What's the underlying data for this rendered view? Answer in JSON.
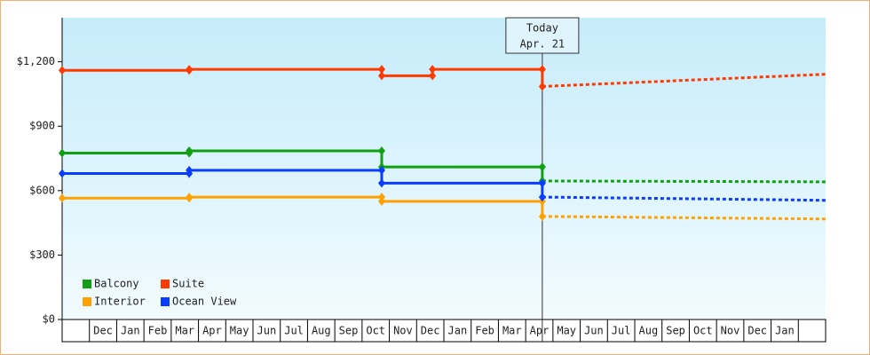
{
  "chart_data": {
    "type": "step",
    "categories": [
      null,
      "Dec",
      "Jan",
      "Feb",
      "Mar",
      "Apr",
      "May",
      "Jun",
      "Jul",
      "Aug",
      "Sep",
      "Oct",
      "Nov",
      "Dec",
      "Jan",
      "Feb",
      "Mar",
      "Apr",
      "May",
      "Jun",
      "Jul",
      "Aug",
      "Sep",
      "Oct",
      "Nov",
      "Dec",
      "Jan",
      null
    ],
    "xlim": [
      -0.5,
      27.5
    ],
    "ylim": [
      0,
      1405
    ],
    "yticks": [
      {
        "value": 0,
        "label": "$0"
      },
      {
        "value": 300,
        "label": "$300"
      },
      {
        "value": 600,
        "label": "$600"
      },
      {
        "value": 900,
        "label": "$900"
      },
      {
        "value": 1200,
        "label": "$1,200"
      }
    ],
    "today": {
      "x": 17.11,
      "label": [
        "Today",
        "Apr. 21"
      ]
    },
    "legend": "lower left",
    "series": [
      {
        "name": "Balcony",
        "color": "#11a011",
        "x": [
          -0.5,
          4.16,
          11.22,
          17.11
        ],
        "values": [
          775,
          785,
          710,
          645
        ],
        "forecast": {
          "x": [
            17.11,
            27.5
          ],
          "values": [
            645,
            641
          ]
        }
      },
      {
        "name": "Suite",
        "color": "#ff3a00",
        "x": [
          -0.5,
          4.16,
          11.22,
          13.08,
          17.11
        ],
        "values": [
          1160,
          1165,
          1135,
          1165,
          1085
        ],
        "forecast": {
          "x": [
            17.11,
            27.5
          ],
          "values": [
            1085,
            1142
          ]
        }
      },
      {
        "name": "Interior",
        "color": "#ffa200",
        "x": [
          -0.5,
          4.16,
          11.22,
          17.11
        ],
        "values": [
          565,
          570,
          550,
          480
        ],
        "forecast": {
          "x": [
            17.11,
            27.5
          ],
          "values": [
            480,
            468
          ]
        }
      },
      {
        "name": "Ocean View",
        "color": "#0a3cff",
        "x": [
          -0.5,
          4.16,
          11.22,
          17.11
        ],
        "values": [
          680,
          695,
          635,
          570
        ],
        "forecast": {
          "x": [
            17.11,
            27.5
          ],
          "values": [
            570,
            555
          ]
        }
      }
    ]
  }
}
